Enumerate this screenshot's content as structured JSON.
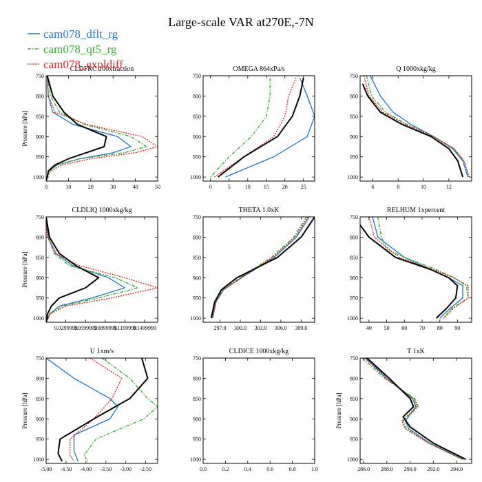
{
  "figure_title": "Large-scale VAR at270E,-7N",
  "legend": [
    {
      "label": "cam078_dflt_rg",
      "color": "#2b7bbd",
      "dash": "solid"
    },
    {
      "label": "cam078_qt5_rg",
      "color": "#3aaa35",
      "dash": "dashdot"
    },
    {
      "label": "cam078_expldiff",
      "color": "#d62828",
      "dash": "dotted"
    }
  ],
  "obs_color": "#000000",
  "chart_data": [
    {
      "type": "line",
      "title": "CLDFRC 100xfraction",
      "ylabel": "Pressure [hPa]",
      "xlim": [
        0,
        50
      ],
      "ylim": [
        750,
        1010
      ],
      "xticks": [
        0,
        10,
        20,
        30,
        40,
        50
      ],
      "xtick_labels": [
        "0",
        "10",
        "20",
        "30",
        "40",
        "50"
      ],
      "yticks": [
        750,
        800,
        850,
        900,
        950,
        1000
      ],
      "series": [
        {
          "role": "obs",
          "y": [
            750,
            800,
            840,
            870,
            900,
            925,
            940,
            955,
            970,
            985,
            1000,
            1010
          ],
          "x": [
            0.5,
            3,
            8,
            14,
            27,
            26,
            18,
            10,
            4,
            1,
            0.5,
            0
          ]
        },
        {
          "role": "s1",
          "y": [
            750,
            800,
            840,
            870,
            900,
            925,
            940,
            955,
            970,
            985,
            1000,
            1010
          ],
          "x": [
            0.5,
            1,
            3,
            12,
            32,
            38,
            30,
            15,
            5,
            1,
            0.5,
            0
          ]
        },
        {
          "role": "s2",
          "y": [
            750,
            800,
            840,
            870,
            900,
            925,
            940,
            955,
            970,
            985,
            1000,
            1010
          ],
          "x": [
            0.5,
            2,
            6,
            17,
            38,
            45,
            35,
            15,
            5,
            1.5,
            0.5,
            0
          ]
        },
        {
          "role": "s3",
          "y": [
            750,
            800,
            840,
            870,
            900,
            925,
            940,
            955,
            970,
            985,
            1000,
            1010
          ],
          "x": [
            0.5,
            1,
            4,
            18,
            43,
            50,
            40,
            20,
            7,
            2,
            0.5,
            0
          ]
        }
      ]
    },
    {
      "type": "line",
      "title": "OMEGA 864xPa/s",
      "ylabel": "",
      "xlim": [
        -2,
        28
      ],
      "ylim": [
        750,
        1010
      ],
      "xticks": [
        0,
        5,
        10,
        15,
        20,
        25
      ],
      "xtick_labels": [
        "0",
        "5",
        "10",
        "15",
        "20",
        "25"
      ],
      "yticks": [
        750,
        800,
        850,
        900,
        950,
        1000
      ],
      "series": [
        {
          "role": "obs",
          "y": [
            755,
            800,
            850,
            900,
            950,
            1000
          ],
          "x": [
            25,
            24,
            22,
            18,
            9,
            2
          ]
        },
        {
          "role": "s1",
          "y": [
            755,
            800,
            850,
            900,
            950,
            1000
          ],
          "x": [
            24,
            26,
            28,
            26,
            17,
            4
          ]
        },
        {
          "role": "s2",
          "y": [
            755,
            800,
            850,
            900,
            950,
            1000
          ],
          "x": [
            16,
            16,
            15,
            11,
            5,
            0
          ]
        },
        {
          "role": "s3",
          "y": [
            755,
            800,
            850,
            900,
            950,
            1000
          ],
          "x": [
            23,
            21,
            20,
            17,
            9,
            1
          ]
        }
      ]
    },
    {
      "type": "line",
      "title": "Q 1000xkg/kg",
      "ylabel": "",
      "xlim": [
        5,
        13.8
      ],
      "ylim": [
        750,
        1010
      ],
      "xticks": [
        6,
        8,
        10,
        12
      ],
      "xtick_labels": [
        "6",
        "8",
        "10",
        "12"
      ],
      "yticks": [
        750,
        800,
        850,
        900,
        950,
        1000
      ],
      "series": [
        {
          "role": "obs",
          "y": [
            770,
            800,
            840,
            870,
            900,
            930,
            960,
            1000
          ],
          "x": [
            5.2,
            5.6,
            6.6,
            8.3,
            10.6,
            12.0,
            12.7,
            13.1
          ]
        },
        {
          "role": "s1",
          "y": [
            750,
            800,
            840,
            870,
            900,
            930,
            960,
            1000
          ],
          "x": [
            5.8,
            6.6,
            7.6,
            9.0,
            10.8,
            12.3,
            13.1,
            13.5
          ]
        },
        {
          "role": "s2",
          "y": [
            750,
            800,
            840,
            870,
            900,
            930,
            960,
            1000
          ],
          "x": [
            5.5,
            5.9,
            7.0,
            8.7,
            10.8,
            12.4,
            13.2,
            13.6
          ]
        },
        {
          "role": "s3",
          "y": [
            750,
            800,
            840,
            870,
            900,
            930,
            960,
            1000
          ],
          "x": [
            5.3,
            5.7,
            6.8,
            8.6,
            10.8,
            12.4,
            13.2,
            13.6
          ]
        }
      ]
    },
    {
      "type": "line",
      "title": "CLDLIQ 1000xkg/kg",
      "ylabel": "Pressure [hPa]",
      "xlim": [
        0,
        0.17
      ],
      "ylim": [
        750,
        1010
      ],
      "xticks": [
        0.03,
        0.06,
        0.09,
        0.12,
        0.15
      ],
      "xtick_labels": [
        "0.0299999",
        "0.0599999",
        "0.0899999",
        "0.1199999",
        "0.1499999"
      ],
      "yticks": [
        750,
        800,
        850,
        900,
        950,
        1000
      ],
      "series": [
        {
          "role": "obs",
          "y": [
            750,
            800,
            840,
            870,
            900,
            925,
            950,
            970,
            990,
            1010
          ],
          "x": [
            0,
            0.005,
            0.02,
            0.045,
            0.08,
            0.06,
            0.02,
            0.008,
            0.002,
            0
          ]
        },
        {
          "role": "s1",
          "y": [
            750,
            800,
            840,
            870,
            900,
            925,
            950,
            970,
            990,
            1010
          ],
          "x": [
            0,
            0.003,
            0.015,
            0.04,
            0.095,
            0.12,
            0.07,
            0.02,
            0.005,
            0
          ]
        },
        {
          "role": "s2",
          "y": [
            750,
            800,
            840,
            870,
            900,
            925,
            950,
            970,
            990,
            1010
          ],
          "x": [
            0,
            0.004,
            0.012,
            0.035,
            0.105,
            0.14,
            0.08,
            0.025,
            0.005,
            0
          ]
        },
        {
          "role": "s3",
          "y": [
            750,
            800,
            840,
            870,
            900,
            925,
            950,
            970,
            990,
            1010
          ],
          "x": [
            0,
            0.002,
            0.014,
            0.05,
            0.12,
            0.17,
            0.1,
            0.03,
            0.006,
            0
          ]
        }
      ]
    },
    {
      "type": "line",
      "title": "THETA 1.0xK",
      "ylabel": "",
      "xlim": [
        294.5,
        311
      ],
      "ylim": [
        750,
        1010
      ],
      "xticks": [
        297,
        300,
        303,
        306,
        309
      ],
      "xtick_labels": [
        "297.0",
        "300.0",
        "303.0",
        "306.0",
        "309.0"
      ],
      "yticks": [
        750,
        800,
        850,
        900,
        950,
        1000
      ],
      "series": [
        {
          "role": "obs",
          "y": [
            750,
            800,
            850,
            900,
            930,
            960,
            1000
          ],
          "x": [
            311,
            309,
            305.5,
            299.5,
            297.2,
            296.2,
            295.7
          ]
        },
        {
          "role": "s1",
          "y": [
            750,
            800,
            850,
            900,
            930,
            960,
            1000
          ],
          "x": [
            310.2,
            308.3,
            305,
            300.2,
            297.5,
            296.4,
            295.9
          ]
        },
        {
          "role": "s2",
          "y": [
            750,
            800,
            850,
            900,
            930,
            960,
            1000
          ],
          "x": [
            309.8,
            307.9,
            304.6,
            300,
            297.4,
            296.3,
            295.8
          ]
        },
        {
          "role": "s3",
          "y": [
            750,
            800,
            850,
            900,
            930,
            960,
            1000
          ],
          "x": [
            310.0,
            308.1,
            304.8,
            300.1,
            297.5,
            296.4,
            295.9
          ]
        }
      ]
    },
    {
      "type": "line",
      "title": "RELHUM 1xpercent",
      "ylabel": "",
      "xlim": [
        35,
        98
      ],
      "ylim": [
        750,
        1010
      ],
      "xticks": [
        40,
        50,
        60,
        70,
        80,
        90
      ],
      "xtick_labels": [
        "40",
        "50",
        "60",
        "70",
        "80",
        "90"
      ],
      "yticks": [
        750,
        800,
        850,
        900,
        950,
        1000
      ],
      "series": [
        {
          "role": "obs",
          "y": [
            770,
            800,
            850,
            880,
            900,
            920,
            950,
            975,
            1000
          ],
          "x": [
            35,
            40,
            55,
            75,
            85,
            90,
            89,
            84,
            78
          ]
        },
        {
          "role": "s1",
          "y": [
            750,
            800,
            850,
            880,
            900,
            920,
            950,
            975,
            1000
          ],
          "x": [
            42,
            45,
            60,
            75,
            85,
            93,
            93,
            86,
            80
          ]
        },
        {
          "role": "s2",
          "y": [
            750,
            800,
            830,
            850,
            880,
            900,
            920,
            950,
            975,
            1000
          ],
          "x": [
            45,
            47,
            50,
            60,
            78,
            88,
            95,
            96,
            87,
            82
          ]
        },
        {
          "role": "s3",
          "y": [
            750,
            800,
            850,
            880,
            900,
            920,
            950,
            975,
            1000
          ],
          "x": [
            40,
            43,
            57,
            76,
            88,
            96,
            96,
            88,
            82
          ]
        }
      ]
    },
    {
      "type": "line",
      "title": "U 1xm/s",
      "ylabel": "Pressure [hPa]",
      "xlim": [
        -5,
        -2.2
      ],
      "ylim": [
        750,
        1010
      ],
      "xticks": [
        -5,
        -4.5,
        -4,
        -3.5,
        -3,
        -2.5
      ],
      "xtick_labels": [
        "-5.00",
        "-4.50",
        "-4.00",
        "-3.50",
        "-3.00",
        "-2.50"
      ],
      "yticks": [
        750,
        800,
        850,
        900,
        950,
        1000
      ],
      "series": [
        {
          "role": "obs",
          "y": [
            750,
            800,
            850,
            900,
            950,
            985,
            1005
          ],
          "x": [
            -2.6,
            -2.45,
            -2.9,
            -3.8,
            -4.65,
            -4.7,
            -4.6
          ]
        },
        {
          "role": "s1",
          "y": [
            750,
            800,
            850,
            870,
            900,
            940,
            980,
            1005
          ],
          "x": [
            -5,
            -4.3,
            -3.4,
            -3.2,
            -3.4,
            -4.3,
            -4.3,
            -4.2
          ]
        },
        {
          "role": "s2",
          "y": [
            750,
            800,
            850,
            870,
            900,
            950,
            990,
            1005
          ],
          "x": [
            -3.6,
            -2.9,
            -2.45,
            -2.2,
            -2.55,
            -3.75,
            -4.05,
            -3.95
          ]
        },
        {
          "role": "s3",
          "y": [
            750,
            800,
            850,
            900,
            950,
            990,
            1005
          ],
          "x": [
            -3.9,
            -3.1,
            -3.35,
            -3.8,
            -4.4,
            -4.4,
            -4.3
          ]
        }
      ]
    },
    {
      "type": "line",
      "title": "CLDICE 1000xkg/kg",
      "ylabel": "",
      "xlim": [
        0,
        1
      ],
      "ylim": [
        750,
        1010
      ],
      "xticks": [
        0,
        0.2,
        0.4,
        0.6,
        0.8,
        1.0
      ],
      "xtick_labels": [
        "0.0",
        "0.2",
        "0.4",
        "0.6",
        "0.8",
        "1.0"
      ],
      "yticks": [
        750,
        800,
        850,
        900,
        950,
        1000
      ],
      "series": []
    },
    {
      "type": "line",
      "title": "T 1xK",
      "ylabel": "Pressure [hPa]",
      "xlim": [
        285.7,
        295.3
      ],
      "ylim": [
        750,
        1010
      ],
      "xticks": [
        286,
        288,
        290,
        292,
        294
      ],
      "xtick_labels": [
        "286.0",
        "288.0",
        "290.0",
        "292.0",
        "294.0"
      ],
      "yticks": [
        750,
        800,
        850,
        900,
        950,
        1000
      ],
      "series": [
        {
          "role": "obs",
          "y": [
            750,
            800,
            850,
            870,
            895,
            920,
            960,
            1000
          ],
          "x": [
            286.3,
            288.2,
            290.0,
            290.3,
            289.4,
            290.0,
            292.0,
            294.8
          ]
        },
        {
          "role": "s1",
          "y": [
            750,
            800,
            850,
            870,
            905,
            925,
            960,
            1000
          ],
          "x": [
            286.2,
            288.0,
            290.2,
            290.5,
            289.6,
            289.9,
            291.7,
            294.6
          ]
        },
        {
          "role": "s2",
          "y": [
            750,
            800,
            850,
            870,
            905,
            925,
            960,
            1000
          ],
          "x": [
            285.9,
            287.8,
            290.4,
            290.7,
            289.4,
            289.7,
            291.6,
            294.5
          ]
        },
        {
          "role": "s3",
          "y": [
            750,
            800,
            850,
            870,
            905,
            925,
            960,
            1000
          ],
          "x": [
            286.1,
            287.9,
            290.3,
            290.6,
            289.3,
            289.6,
            291.6,
            294.5
          ]
        }
      ]
    }
  ]
}
